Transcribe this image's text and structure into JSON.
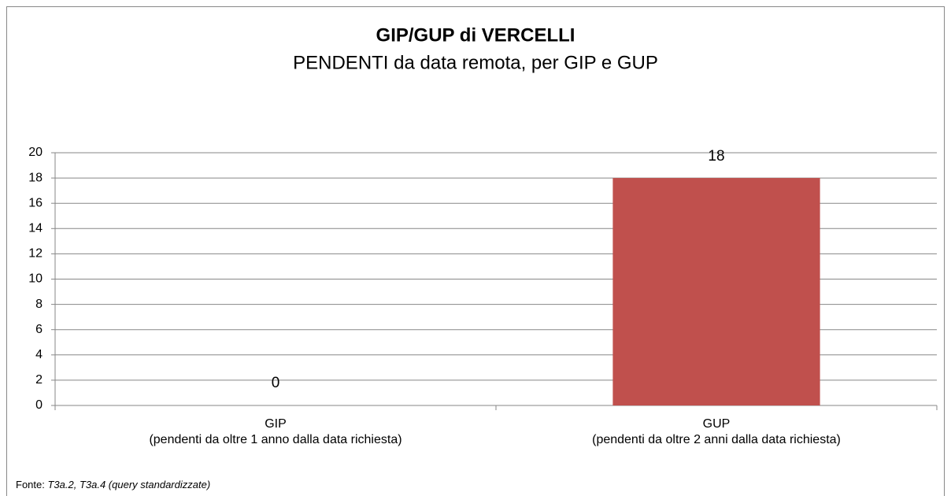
{
  "chart_data": {
    "type": "bar",
    "title": "GIP/GUP di VERCELLI",
    "subtitle": "PENDENTI da data remota, per GIP e GUP",
    "categories": [
      [
        "GIP",
        "(pendenti da oltre 1 anno dalla data richiesta)"
      ],
      [
        "GUP",
        "(pendenti da oltre 2 anni dalla data richiesta)"
      ]
    ],
    "values": [
      0,
      18
    ],
    "color": "#c0504d",
    "ylim": [
      0,
      20
    ],
    "yticks": [
      0,
      2,
      4,
      6,
      8,
      10,
      12,
      14,
      16,
      18,
      20
    ],
    "grid": true,
    "source_label": "Fonte:",
    "source": "T3a.2, T3a.4 (query standardizzate)"
  }
}
